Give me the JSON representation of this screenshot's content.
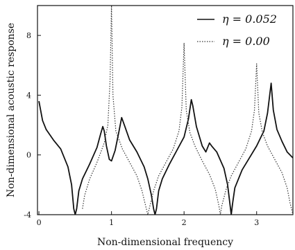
{
  "chart_data": {
    "type": "line",
    "title": "",
    "xlabel": "Non-dimensional frequency",
    "ylabel": "Non-dimensional acoustic response",
    "xlim": [
      -0.02,
      3.5
    ],
    "ylim": [
      -4,
      10
    ],
    "x_ticks": [
      "0",
      "1",
      "2",
      "3"
    ],
    "y_ticks": [
      "-4",
      "0",
      "4",
      "8"
    ],
    "grid": false,
    "legend_position": "top-right",
    "series": [
      {
        "name": "η = 0.052",
        "style": "solid",
        "color": "#111111",
        "points": [
          [
            0.0,
            3.6
          ],
          [
            0.05,
            2.3
          ],
          [
            0.1,
            1.7
          ],
          [
            0.2,
            1.0
          ],
          [
            0.3,
            0.4
          ],
          [
            0.4,
            -0.8
          ],
          [
            0.45,
            -2.0
          ],
          [
            0.48,
            -3.6
          ],
          [
            0.5,
            -4.0
          ],
          [
            0.52,
            -3.6
          ],
          [
            0.55,
            -2.4
          ],
          [
            0.6,
            -1.6
          ],
          [
            0.7,
            -0.6
          ],
          [
            0.8,
            0.5
          ],
          [
            0.85,
            1.4
          ],
          [
            0.88,
            1.9
          ],
          [
            0.9,
            1.6
          ],
          [
            0.93,
            0.6
          ],
          [
            0.97,
            -0.3
          ],
          [
            1.0,
            -0.4
          ],
          [
            1.05,
            0.3
          ],
          [
            1.1,
            1.5
          ],
          [
            1.14,
            2.5
          ],
          [
            1.17,
            2.1
          ],
          [
            1.25,
            1.0
          ],
          [
            1.35,
            0.2
          ],
          [
            1.45,
            -0.8
          ],
          [
            1.5,
            -1.6
          ],
          [
            1.55,
            -2.7
          ],
          [
            1.58,
            -3.6
          ],
          [
            1.6,
            -4.0
          ],
          [
            1.62,
            -3.6
          ],
          [
            1.65,
            -2.4
          ],
          [
            1.7,
            -1.6
          ],
          [
            1.8,
            -0.6
          ],
          [
            1.9,
            0.3
          ],
          [
            2.0,
            1.2
          ],
          [
            2.06,
            2.4
          ],
          [
            2.1,
            3.7
          ],
          [
            2.12,
            3.3
          ],
          [
            2.17,
            1.9
          ],
          [
            2.25,
            0.6
          ],
          [
            2.3,
            0.2
          ],
          [
            2.35,
            0.8
          ],
          [
            2.38,
            0.6
          ],
          [
            2.45,
            0.2
          ],
          [
            2.55,
            -0.9
          ],
          [
            2.6,
            -2.0
          ],
          [
            2.63,
            -3.2
          ],
          [
            2.65,
            -4.0
          ],
          [
            2.67,
            -3.2
          ],
          [
            2.7,
            -2.2
          ],
          [
            2.8,
            -1.0
          ],
          [
            2.9,
            -0.2
          ],
          [
            3.0,
            0.6
          ],
          [
            3.1,
            1.6
          ],
          [
            3.15,
            2.8
          ],
          [
            3.2,
            4.8
          ],
          [
            3.23,
            3.0
          ],
          [
            3.28,
            1.7
          ],
          [
            3.35,
            0.9
          ],
          [
            3.42,
            0.2
          ],
          [
            3.5,
            -0.2
          ]
        ]
      },
      {
        "name": "η = 0.00",
        "style": "dotted",
        "color": "#333333",
        "points": [
          [
            0.6,
            -3.6
          ],
          [
            0.63,
            -2.7
          ],
          [
            0.7,
            -1.6
          ],
          [
            0.8,
            -0.5
          ],
          [
            0.9,
            0.8
          ],
          [
            0.95,
            2.0
          ],
          [
            0.98,
            5.0
          ],
          [
            1.0,
            10.0
          ],
          [
            1.02,
            4.0
          ],
          [
            1.06,
            1.6
          ],
          [
            1.15,
            0.4
          ],
          [
            1.25,
            -0.5
          ],
          [
            1.35,
            -1.4
          ],
          [
            1.42,
            -2.4
          ],
          [
            1.47,
            -3.4
          ],
          [
            1.5,
            -4.0
          ],
          [
            1.53,
            -3.4
          ],
          [
            1.58,
            -2.4
          ],
          [
            1.65,
            -1.4
          ],
          [
            1.75,
            -0.5
          ],
          [
            1.85,
            0.4
          ],
          [
            1.93,
            1.6
          ],
          [
            1.97,
            3.2
          ],
          [
            2.0,
            7.5
          ],
          [
            2.03,
            3.0
          ],
          [
            2.08,
            1.5
          ],
          [
            2.15,
            0.6
          ],
          [
            2.25,
            -0.4
          ],
          [
            2.35,
            -1.3
          ],
          [
            2.43,
            -2.3
          ],
          [
            2.48,
            -3.4
          ],
          [
            2.5,
            -4.0
          ],
          [
            2.52,
            -3.4
          ],
          [
            2.58,
            -2.3
          ],
          [
            2.65,
            -1.4
          ],
          [
            2.75,
            -0.5
          ],
          [
            2.85,
            0.4
          ],
          [
            2.93,
            1.6
          ],
          [
            2.97,
            3.0
          ],
          [
            3.0,
            6.1
          ],
          [
            3.03,
            2.8
          ],
          [
            3.08,
            1.5
          ],
          [
            3.15,
            0.6
          ],
          [
            3.25,
            -0.3
          ],
          [
            3.35,
            -1.2
          ],
          [
            3.42,
            -2.2
          ],
          [
            3.46,
            -3.2
          ],
          [
            3.5,
            -4.0
          ]
        ]
      }
    ]
  }
}
